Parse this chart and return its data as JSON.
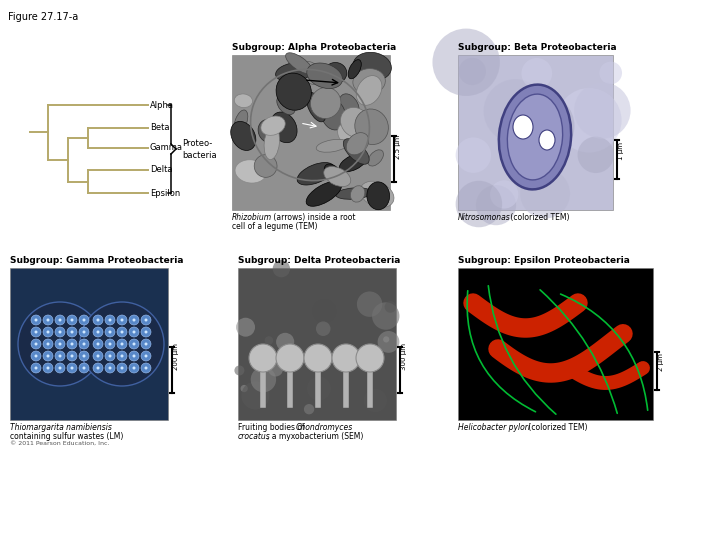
{
  "figure_title": "Figure 27.17-a",
  "background_color": "#ffffff",
  "tree_color": "#b5a96a",
  "tree_labels": [
    "Alpha",
    "Beta",
    "Gamma",
    "Delta",
    "Epsilon"
  ],
  "tree_brace_label_line1": "Proteo-",
  "tree_brace_label_line2": "bacteria",
  "subgroup_titles": [
    "Subgroup: Alpha Proteobacteria",
    "Subgroup: Beta Proteobacteria",
    "Subgroup: Gamma Proteobacteria",
    "Subgroup: Delta Proteobacteria",
    "Subgroup: Epsilon Proteobacteria"
  ],
  "scale_bars": [
    "2.5 μm",
    "1 μm",
    "200 μm",
    "300 μm",
    "2 μm"
  ],
  "copyright": "© 2011 Pearson Education, Inc.",
  "title_fontsize": 6.5,
  "label_fontsize": 6,
  "caption_fontsize": 5.5,
  "scalebar_fontsize": 5
}
